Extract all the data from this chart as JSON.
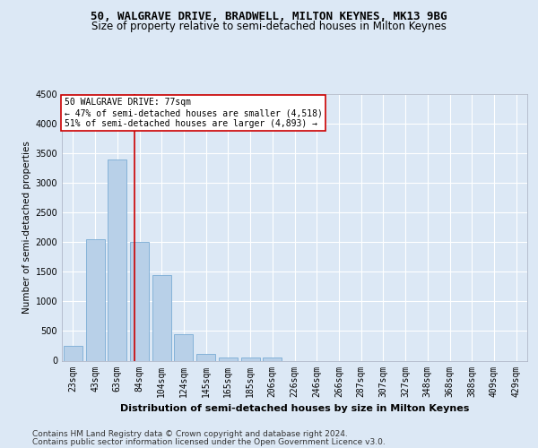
{
  "title1": "50, WALGRAVE DRIVE, BRADWELL, MILTON KEYNES, MK13 9BG",
  "title2": "Size of property relative to semi-detached houses in Milton Keynes",
  "xlabel": "Distribution of semi-detached houses by size in Milton Keynes",
  "ylabel": "Number of semi-detached properties",
  "footer1": "Contains HM Land Registry data © Crown copyright and database right 2024.",
  "footer2": "Contains public sector information licensed under the Open Government Licence v3.0.",
  "categories": [
    "23sqm",
    "43sqm",
    "63sqm",
    "84sqm",
    "104sqm",
    "124sqm",
    "145sqm",
    "165sqm",
    "185sqm",
    "206sqm",
    "226sqm",
    "246sqm",
    "266sqm",
    "287sqm",
    "307sqm",
    "327sqm",
    "348sqm",
    "368sqm",
    "388sqm",
    "409sqm",
    "429sqm"
  ],
  "values": [
    250,
    2050,
    3400,
    2000,
    1450,
    450,
    110,
    60,
    55,
    50,
    0,
    0,
    0,
    0,
    0,
    0,
    0,
    0,
    0,
    0,
    0
  ],
  "bar_color": "#b8d0e8",
  "bar_edge_color": "#7aacd4",
  "vline_color": "#cc0000",
  "vline_pos": 2.77,
  "annotation_title": "50 WALGRAVE DRIVE: 77sqm",
  "annotation_line1": "← 47% of semi-detached houses are smaller (4,518)",
  "annotation_line2": "51% of semi-detached houses are larger (4,893) →",
  "annotation_box_color": "#cc0000",
  "ylim": [
    0,
    4500
  ],
  "yticks": [
    0,
    500,
    1000,
    1500,
    2000,
    2500,
    3000,
    3500,
    4000,
    4500
  ],
  "bg_color": "#dce8f5",
  "plot_bg_color": "#dce8f5",
  "grid_color": "#ffffff",
  "title1_fontsize": 9,
  "title2_fontsize": 8.5,
  "xlabel_fontsize": 8,
  "ylabel_fontsize": 7.5,
  "footer_fontsize": 6.5,
  "tick_fontsize": 7,
  "annot_fontsize": 7
}
